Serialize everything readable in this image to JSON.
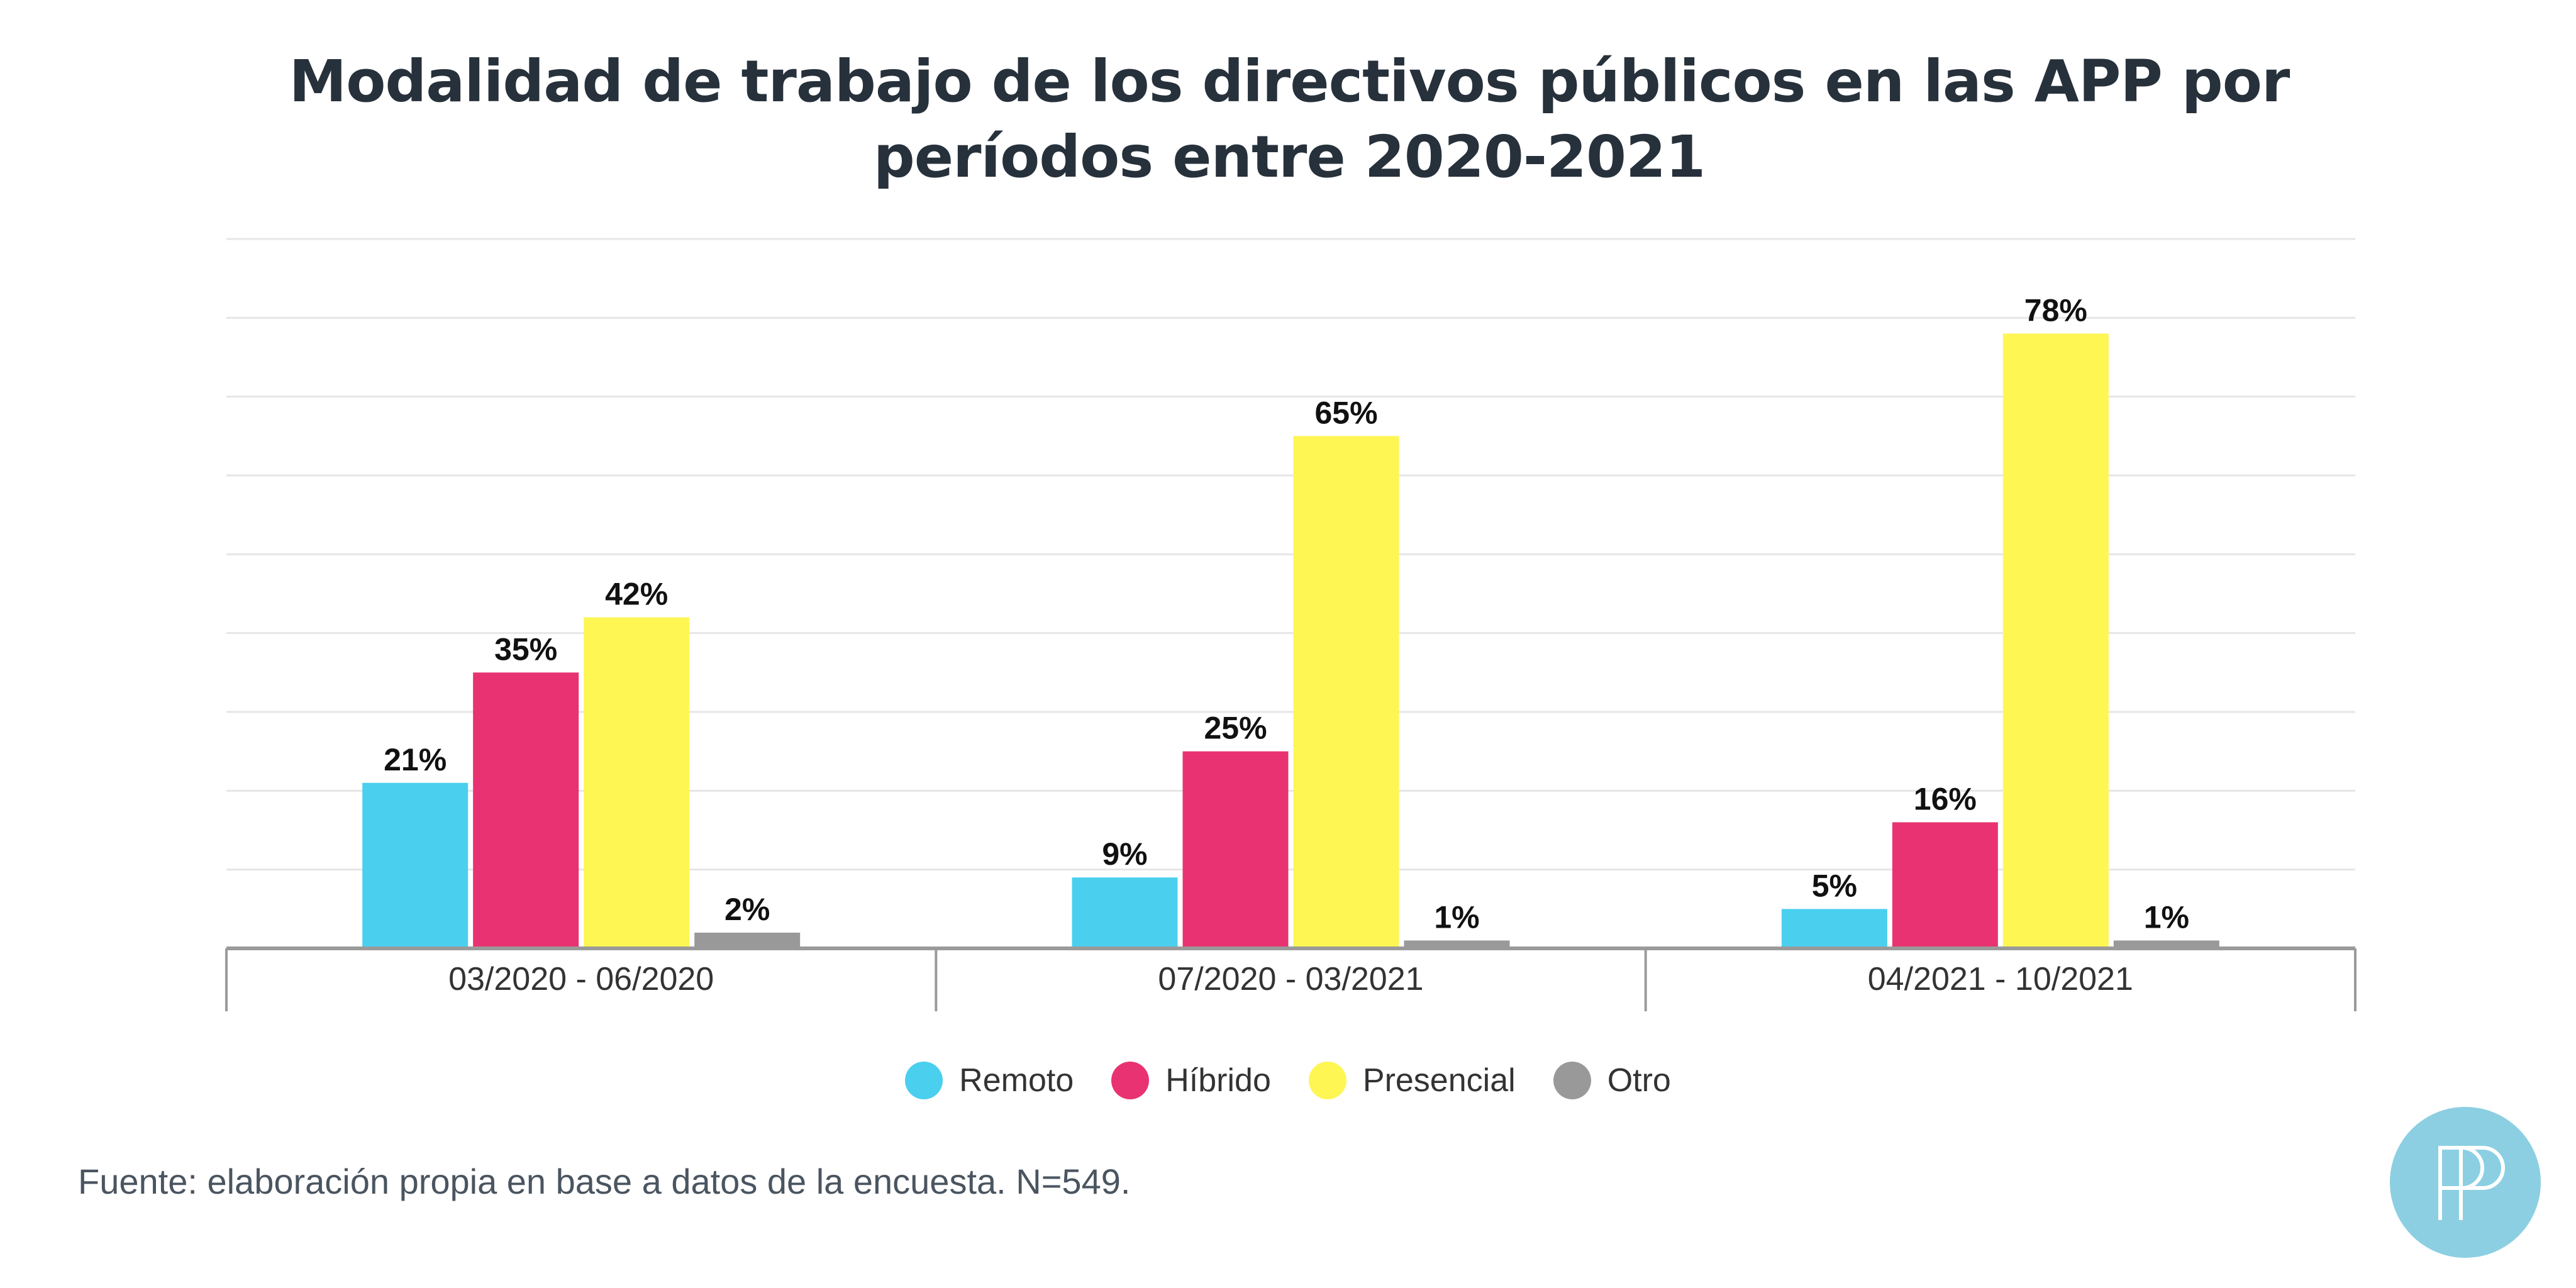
{
  "chart_data": {
    "type": "bar",
    "title": "Modalidad de trabajo de los directivos públicos en las APP por períodos entre 2020-2021",
    "categories": [
      "03/2020 - 06/2020",
      "07/2020 - 03/2021",
      "04/2021 - 10/2021"
    ],
    "series": [
      {
        "name": "Remoto",
        "values": [
          21,
          9,
          5
        ],
        "labels": [
          "21%",
          "9%",
          "5%"
        ],
        "color": "#4bcfee"
      },
      {
        "name": "Híbrido",
        "values": [
          35,
          25,
          16
        ],
        "labels": [
          "35%",
          "25%",
          "16%"
        ],
        "color": "#e83272"
      },
      {
        "name": "Presencial",
        "values": [
          42,
          65,
          78
        ],
        "labels": [
          "42%",
          "65%",
          "78%"
        ],
        "color": "#fef653"
      },
      {
        "name": "Otro",
        "values": [
          2,
          1,
          1
        ],
        "labels": [
          "2%",
          "1%",
          "1%"
        ],
        "color": "#999999"
      }
    ],
    "ylim": [
      0,
      90
    ],
    "grid": true,
    "legend": "bottom-center"
  },
  "source_note": "Fuente: elaboración propia en base a datos de la encuesta. N=549.",
  "logo": {
    "icon": "pp-monogram-logo",
    "color": "#8ccfe2"
  }
}
